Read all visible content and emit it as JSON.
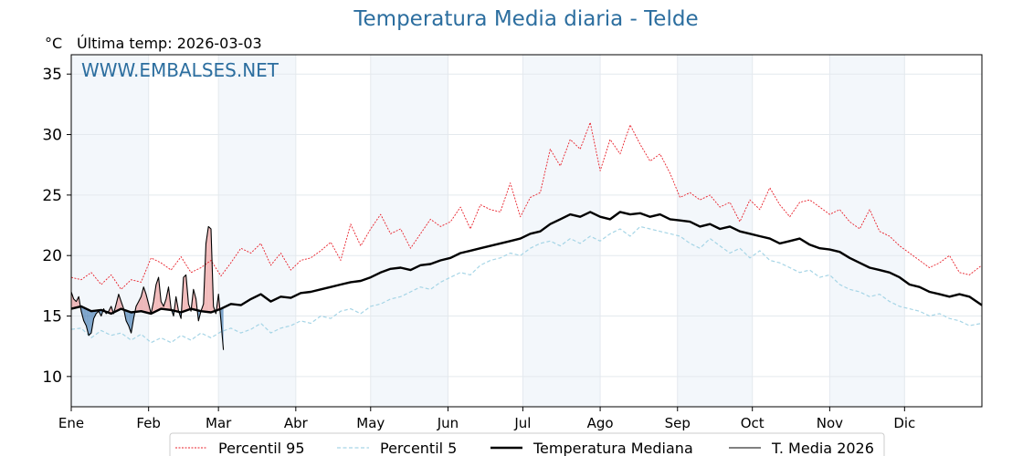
{
  "header": {
    "unit": "°C",
    "last_temp": "Última temp: 2026-03-03"
  },
  "watermark": "WWW.EMBALSES.NET",
  "colors": {
    "title": "#2c6e9f",
    "p95": "#e8202a",
    "p5": "#a6d5e6",
    "median": "#000000",
    "current": "#000000",
    "above_fill": "#e88585",
    "below_fill": "#3f7ab0",
    "band": "#f3f7fb",
    "grid": "#e4e9ee"
  },
  "chart_data": {
    "type": "line",
    "title": "Temperatura Media diaria - Telde",
    "xlabel": "",
    "ylabel": "°C",
    "ylim": [
      7.5,
      36.6
    ],
    "xlim": [
      0,
      365
    ],
    "grid": true,
    "legend_position": "bottom-center",
    "yticks": [
      10,
      15,
      20,
      25,
      30,
      35
    ],
    "xticks": [
      {
        "day": 0,
        "label": "Ene"
      },
      {
        "day": 31,
        "label": "Feb"
      },
      {
        "day": 59,
        "label": "Mar"
      },
      {
        "day": 90,
        "label": "Abr"
      },
      {
        "day": 120,
        "label": "May"
      },
      {
        "day": 151,
        "label": "Jun"
      },
      {
        "day": 181,
        "label": "Jul"
      },
      {
        "day": 212,
        "label": "Ago"
      },
      {
        "day": 243,
        "label": "Sep"
      },
      {
        "day": 273,
        "label": "Oct"
      },
      {
        "day": 304,
        "label": "Nov"
      },
      {
        "day": 334,
        "label": "Dic"
      }
    ],
    "shaded_months": [
      [
        0,
        31
      ],
      [
        59,
        90
      ],
      [
        120,
        151
      ],
      [
        181,
        212
      ],
      [
        243,
        273
      ],
      [
        304,
        334
      ]
    ],
    "series": [
      {
        "name": "Percentil 95",
        "style": "dotted-thin",
        "x": [
          0,
          4,
          8,
          12,
          16,
          20,
          24,
          28,
          32,
          36,
          40,
          44,
          48,
          52,
          56,
          60,
          64,
          68,
          72,
          76,
          80,
          84,
          88,
          92,
          96,
          100,
          104,
          108,
          112,
          116,
          120,
          124,
          128,
          132,
          136,
          140,
          144,
          148,
          152,
          156,
          160,
          164,
          168,
          172,
          176,
          180,
          184,
          188,
          192,
          196,
          200,
          204,
          208,
          212,
          216,
          220,
          224,
          228,
          232,
          236,
          240,
          244,
          248,
          252,
          256,
          260,
          264,
          268,
          272,
          276,
          280,
          284,
          288,
          292,
          296,
          300,
          304,
          308,
          312,
          316,
          320,
          324,
          328,
          332,
          336,
          340,
          344,
          348,
          352,
          356,
          360,
          365
        ],
        "values": [
          18.2,
          18.0,
          18.6,
          17.6,
          18.4,
          17.2,
          18.0,
          17.8,
          19.8,
          19.4,
          18.8,
          19.9,
          18.6,
          19.0,
          19.6,
          18.3,
          19.4,
          20.6,
          20.2,
          21.0,
          19.2,
          20.2,
          18.8,
          19.6,
          19.8,
          20.4,
          21.1,
          19.6,
          22.6,
          20.8,
          22.2,
          23.4,
          21.8,
          22.2,
          20.6,
          21.8,
          23.0,
          22.4,
          22.8,
          24.0,
          22.2,
          24.2,
          23.8,
          23.6,
          26.0,
          23.2,
          24.8,
          25.2,
          28.8,
          27.4,
          29.6,
          28.8,
          31.0,
          27.0,
          29.6,
          28.4,
          30.8,
          29.2,
          27.8,
          28.4,
          26.8,
          24.8,
          25.2,
          24.6,
          25.0,
          24.0,
          24.4,
          22.8,
          24.6,
          23.8,
          25.6,
          24.2,
          23.2,
          24.4,
          24.6,
          24.0,
          23.4,
          23.8,
          22.8,
          22.2,
          23.8,
          22.0,
          21.6,
          20.8,
          20.2,
          19.6,
          19.0,
          19.4,
          20.0,
          18.6,
          18.4,
          19.2
        ]
      },
      {
        "name": "Percentil 5",
        "style": "dashed-thin",
        "x": [
          0,
          4,
          8,
          12,
          16,
          20,
          24,
          28,
          32,
          36,
          40,
          44,
          48,
          52,
          56,
          60,
          64,
          68,
          72,
          76,
          80,
          84,
          88,
          92,
          96,
          100,
          104,
          108,
          112,
          116,
          120,
          124,
          128,
          132,
          136,
          140,
          144,
          148,
          152,
          156,
          160,
          164,
          168,
          172,
          176,
          180,
          184,
          188,
          192,
          196,
          200,
          204,
          208,
          212,
          216,
          220,
          224,
          228,
          232,
          236,
          240,
          244,
          248,
          252,
          256,
          260,
          264,
          268,
          272,
          276,
          280,
          284,
          288,
          292,
          296,
          300,
          304,
          308,
          312,
          316,
          320,
          324,
          328,
          332,
          336,
          340,
          344,
          348,
          352,
          356,
          360,
          365
        ],
        "values": [
          13.9,
          14.0,
          13.2,
          13.8,
          13.4,
          13.6,
          13.0,
          13.5,
          12.8,
          13.2,
          12.8,
          13.4,
          13.0,
          13.6,
          13.2,
          13.7,
          14.0,
          13.6,
          13.9,
          14.4,
          13.6,
          14.0,
          14.2,
          14.6,
          14.4,
          15.0,
          14.8,
          15.4,
          15.6,
          15.2,
          15.8,
          16.0,
          16.4,
          16.6,
          17.0,
          17.4,
          17.2,
          17.8,
          18.2,
          18.6,
          18.4,
          19.2,
          19.6,
          19.8,
          20.2,
          20.0,
          20.6,
          21.0,
          21.2,
          20.8,
          21.4,
          21.0,
          21.6,
          21.2,
          21.8,
          22.2,
          21.6,
          22.4,
          22.2,
          22.0,
          21.8,
          21.6,
          21.0,
          20.6,
          21.4,
          20.8,
          20.2,
          20.6,
          19.8,
          20.4,
          19.6,
          19.4,
          19.0,
          18.6,
          18.8,
          18.2,
          18.4,
          17.6,
          17.2,
          17.0,
          16.6,
          16.8,
          16.2,
          15.8,
          15.6,
          15.4,
          15.0,
          15.2,
          14.8,
          14.6,
          14.2,
          14.4
        ]
      },
      {
        "name": "Temperatura Mediana",
        "style": "solid-thick",
        "x": [
          0,
          4,
          8,
          12,
          16,
          20,
          24,
          28,
          32,
          36,
          40,
          44,
          48,
          52,
          56,
          60,
          64,
          68,
          72,
          76,
          80,
          84,
          88,
          92,
          96,
          100,
          104,
          108,
          112,
          116,
          120,
          124,
          128,
          132,
          136,
          140,
          144,
          148,
          152,
          156,
          160,
          164,
          168,
          172,
          176,
          180,
          184,
          188,
          192,
          196,
          200,
          204,
          208,
          212,
          216,
          220,
          224,
          228,
          232,
          236,
          240,
          244,
          248,
          252,
          256,
          260,
          264,
          268,
          272,
          276,
          280,
          284,
          288,
          292,
          296,
          300,
          304,
          308,
          312,
          316,
          320,
          324,
          328,
          332,
          336,
          340,
          344,
          348,
          352,
          356,
          360,
          365
        ],
        "values": [
          15.6,
          15.8,
          15.4,
          15.5,
          15.2,
          15.6,
          15.3,
          15.4,
          15.2,
          15.6,
          15.5,
          15.3,
          15.6,
          15.4,
          15.3,
          15.6,
          16.0,
          15.9,
          16.4,
          16.8,
          16.2,
          16.6,
          16.5,
          16.9,
          17.0,
          17.2,
          17.4,
          17.6,
          17.8,
          17.9,
          18.2,
          18.6,
          18.9,
          19.0,
          18.8,
          19.2,
          19.3,
          19.6,
          19.8,
          20.2,
          20.4,
          20.6,
          20.8,
          21.0,
          21.2,
          21.4,
          21.8,
          22.0,
          22.6,
          23.0,
          23.4,
          23.2,
          23.6,
          23.2,
          23.0,
          23.6,
          23.4,
          23.5,
          23.2,
          23.4,
          23.0,
          22.9,
          22.8,
          22.4,
          22.6,
          22.2,
          22.4,
          22.0,
          21.8,
          21.6,
          21.4,
          21.0,
          21.2,
          21.4,
          20.9,
          20.6,
          20.5,
          20.3,
          19.8,
          19.4,
          19.0,
          18.8,
          18.6,
          18.2,
          17.6,
          17.4,
          17.0,
          16.8,
          16.6,
          16.8,
          16.6,
          15.9
        ]
      },
      {
        "name": "T. Media 2026",
        "style": "solid-thin",
        "x": [
          0,
          1,
          2,
          3,
          4,
          5,
          6,
          7,
          8,
          9,
          10,
          11,
          12,
          13,
          14,
          15,
          16,
          17,
          18,
          19,
          20,
          21,
          22,
          23,
          24,
          25,
          26,
          27,
          28,
          29,
          30,
          31,
          32,
          33,
          34,
          35,
          36,
          37,
          38,
          39,
          40,
          41,
          42,
          43,
          44,
          45,
          46,
          47,
          48,
          49,
          50,
          51,
          52,
          53,
          54,
          55,
          56,
          57,
          58,
          59,
          60,
          61
        ],
        "values": [
          17.0,
          16.4,
          16.2,
          16.6,
          15.4,
          14.6,
          14.2,
          13.4,
          13.6,
          14.8,
          15.2,
          15.4,
          15.0,
          15.6,
          15.2,
          15.4,
          15.8,
          15.2,
          16.0,
          16.8,
          16.2,
          15.6,
          14.6,
          14.2,
          13.6,
          14.8,
          15.8,
          16.2,
          16.6,
          17.4,
          16.8,
          16.0,
          15.2,
          16.2,
          17.6,
          18.2,
          16.2,
          15.8,
          16.4,
          17.4,
          15.6,
          15.0,
          16.6,
          15.4,
          14.8,
          18.2,
          18.4,
          16.0,
          15.4,
          17.2,
          16.4,
          14.6,
          15.4,
          16.0,
          21.0,
          22.4,
          22.2,
          15.8,
          15.2,
          16.8,
          14.6,
          12.2
        ]
      }
    ]
  },
  "legend": [
    {
      "label": "Percentil 95",
      "style": "dotted-thin"
    },
    {
      "label": "Percentil 5",
      "style": "dashed-thin"
    },
    {
      "label": "Temperatura Mediana",
      "style": "solid-thick"
    },
    {
      "label": "T. Media 2026",
      "style": "solid-thin"
    }
  ]
}
